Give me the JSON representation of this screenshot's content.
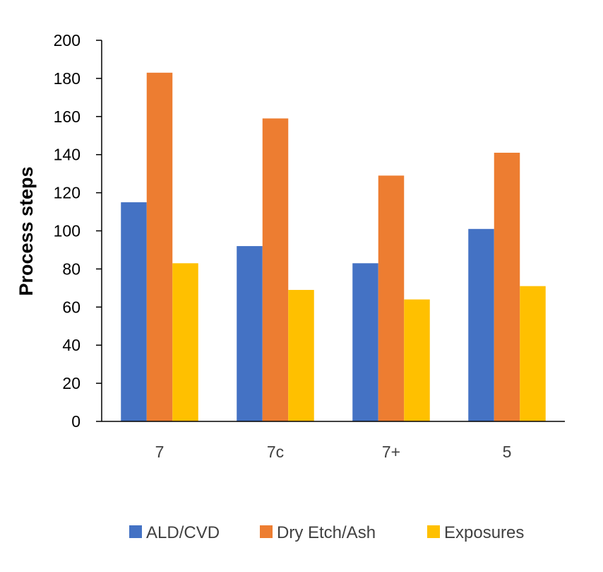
{
  "chart_data": {
    "type": "bar",
    "title": "",
    "xlabel": "",
    "ylabel": "Process steps",
    "ylim": [
      0,
      200
    ],
    "yticks": [
      0,
      20,
      40,
      60,
      80,
      100,
      120,
      140,
      160,
      180,
      200
    ],
    "categories": [
      "7",
      "7c",
      "7+",
      "5"
    ],
    "series": [
      {
        "name": "ALD/CVD",
        "color": "#4472C4",
        "values": [
          115,
          92,
          83,
          101
        ]
      },
      {
        "name": "Dry Etch/Ash",
        "color": "#ED7D31",
        "values": [
          183,
          159,
          129,
          141
        ]
      },
      {
        "name": "Exposures",
        "color": "#FFC000",
        "values": [
          83,
          69,
          64,
          71
        ]
      }
    ],
    "grid": false,
    "legend_position": "bottom"
  }
}
